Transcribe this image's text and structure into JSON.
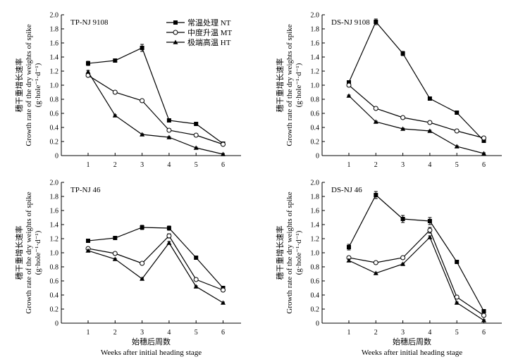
{
  "chart_data": [
    {
      "type": "line",
      "title": "TP-NJ 9108",
      "ylabel_cn": "穗干重增长速率",
      "ylabel_en": "Growth rate of the dry weights of spike",
      "ylabel_unit": "(g·hole⁻¹·d⁻¹)",
      "xlabel_cn": "",
      "xlabel_en": "",
      "categories": [
        "1",
        "2",
        "3",
        "4",
        "5",
        "6"
      ],
      "ylim": [
        0,
        2.0
      ],
      "yticks": [
        "0",
        "0.2",
        "0.4",
        "0.6",
        "0.8",
        "1.0",
        "1.2",
        "1.4",
        "1.6",
        "1.8",
        "2.0"
      ],
      "series": [
        {
          "name": "常温处理 NT",
          "marker": "square",
          "values": [
            1.31,
            1.35,
            1.53,
            0.5,
            0.45,
            0.17
          ],
          "errors": [
            0.03,
            0.01,
            0.05,
            0.01,
            0.01,
            0.01
          ]
        },
        {
          "name": "中度升温 MT",
          "marker": "circle",
          "values": [
            1.14,
            0.9,
            0.78,
            0.36,
            0.29,
            0.16
          ],
          "errors": [
            0.02,
            0.02,
            0.01,
            0.01,
            0.01,
            0.01
          ]
        },
        {
          "name": "极端高温 HT",
          "marker": "triangle",
          "values": [
            1.19,
            0.57,
            0.3,
            0.26,
            0.11,
            0.02
          ],
          "errors": [
            0.02,
            0.01,
            0.01,
            0.01,
            0.01,
            0.01
          ]
        }
      ],
      "legend": {
        "position": "top-right",
        "entries": [
          "常温处理 NT",
          "中度升温 MT",
          "极端高温 HT"
        ]
      }
    },
    {
      "type": "line",
      "title": "DS-NJ 9108",
      "ylabel_cn": "穗干重增长速率",
      "ylabel_en": "Growth rate of the dry weights of spike",
      "ylabel_unit": "(g·hole⁻¹·d⁻¹)",
      "xlabel_cn": "",
      "xlabel_en": "",
      "categories": [
        "1",
        "2",
        "3",
        "4",
        "5",
        "6"
      ],
      "ylim": [
        0,
        2.0
      ],
      "yticks": [
        "0",
        "0.2",
        "0.4",
        "0.6",
        "0.8",
        "1.0",
        "1.2",
        "1.4",
        "1.6",
        "1.8",
        "2.0"
      ],
      "series": [
        {
          "name": "常温处理 NT",
          "marker": "square",
          "values": [
            1.04,
            1.9,
            1.45,
            0.81,
            0.61,
            0.21
          ],
          "errors": [
            0.02,
            0.04,
            0.03,
            0.01,
            0.01,
            0.01
          ]
        },
        {
          "name": "中度升温 MT",
          "marker": "circle",
          "values": [
            1.0,
            0.67,
            0.54,
            0.47,
            0.35,
            0.25
          ],
          "errors": [
            0.02,
            0.01,
            0.01,
            0.01,
            0.01,
            0.01
          ]
        },
        {
          "name": "极端高温 HT",
          "marker": "triangle",
          "values": [
            0.85,
            0.48,
            0.38,
            0.35,
            0.13,
            0.03
          ],
          "errors": [
            0.01,
            0.01,
            0.01,
            0.01,
            0.01,
            0.01
          ]
        }
      ]
    },
    {
      "type": "line",
      "title": "TP-NJ 46",
      "ylabel_cn": "穗干重增长速率",
      "ylabel_en": "Growth rate of the dry weights of spike",
      "ylabel_unit": "(g·hole⁻¹·d⁻¹)",
      "xlabel_cn": "始穗后周数",
      "xlabel_en": "Weeks after initial heading stage",
      "categories": [
        "1",
        "2",
        "3",
        "4",
        "5",
        "6"
      ],
      "ylim": [
        0,
        2.0
      ],
      "yticks": [
        "0",
        "0.2",
        "0.4",
        "0.6",
        "0.8",
        "1.0",
        "1.2",
        "1.4",
        "1.6",
        "1.8",
        "2.0"
      ],
      "series": [
        {
          "name": "常温处理 NT",
          "marker": "square",
          "values": [
            1.17,
            1.21,
            1.36,
            1.35,
            0.93,
            0.5
          ],
          "errors": [
            0.02,
            0.02,
            0.03,
            0.03,
            0.02,
            0.01
          ]
        },
        {
          "name": "中度升温 MT",
          "marker": "circle",
          "values": [
            1.06,
            0.99,
            0.85,
            1.24,
            0.62,
            0.47
          ],
          "errors": [
            0.02,
            0.01,
            0.01,
            0.03,
            0.01,
            0.01
          ]
        },
        {
          "name": "极端高温 HT",
          "marker": "triangle",
          "values": [
            1.03,
            0.91,
            0.63,
            1.14,
            0.52,
            0.29
          ],
          "errors": [
            0.01,
            0.01,
            0.01,
            0.02,
            0.01,
            0.01
          ]
        }
      ]
    },
    {
      "type": "line",
      "title": "DS-NJ 46",
      "ylabel_cn": "穗干重增长速率",
      "ylabel_en": "Growth rate of the dry weights of spike",
      "ylabel_unit": "(g·hole⁻¹·d⁻¹)",
      "xlabel_cn": "始穗后周数",
      "xlabel_en": "Weeks after initial heading stage",
      "categories": [
        "1",
        "2",
        "3",
        "4",
        "5",
        "6"
      ],
      "ylim": [
        0,
        2.0
      ],
      "yticks": [
        "0",
        "0.2",
        "0.4",
        "0.6",
        "0.8",
        "1.0",
        "1.2",
        "1.4",
        "1.6",
        "1.8",
        "2.0"
      ],
      "series": [
        {
          "name": "常温处理 NT",
          "marker": "square",
          "values": [
            1.08,
            1.82,
            1.48,
            1.45,
            0.87,
            0.17
          ],
          "errors": [
            0.04,
            0.05,
            0.05,
            0.05,
            0.01,
            0.01
          ]
        },
        {
          "name": "中度升温 MT",
          "marker": "circle",
          "values": [
            0.93,
            0.86,
            0.93,
            1.32,
            0.37,
            0.11
          ],
          "errors": [
            0.02,
            0.01,
            0.01,
            0.04,
            0.01,
            0.01
          ]
        },
        {
          "name": "极端高温 HT",
          "marker": "triangle",
          "values": [
            0.89,
            0.71,
            0.84,
            1.22,
            0.29,
            0.04
          ],
          "errors": [
            0.02,
            0.01,
            0.01,
            0.02,
            0.01,
            0.01
          ]
        }
      ]
    }
  ]
}
